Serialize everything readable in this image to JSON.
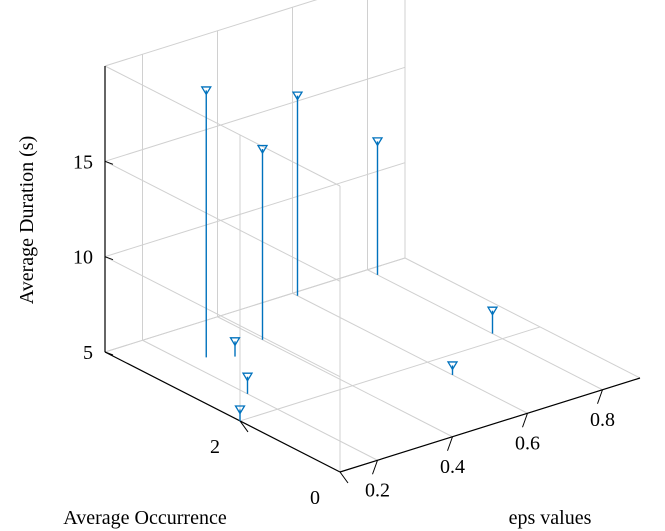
{
  "chart_data": {
    "type": "stem3d",
    "xlabel": "eps values",
    "ylabel": "Average Occurrence",
    "zlabel": "Average Duration (s)",
    "xticks": [
      0.2,
      0.4,
      0.6,
      0.8
    ],
    "yticks": [
      0,
      2
    ],
    "zticks": [
      5,
      10,
      15
    ],
    "xlim": [
      0.1,
      0.9
    ],
    "ylim": [
      0,
      4.7
    ],
    "zlim": [
      5,
      20
    ],
    "grid": true,
    "colors": {
      "stem": "#0072BD",
      "grid": "#d0d0d0",
      "axis": "#000000"
    },
    "points": [
      {
        "x": 0.1,
        "y": 2.0,
        "z": 5.6
      },
      {
        "x": 0.2,
        "y": 2.6,
        "z": 5.9
      },
      {
        "x": 0.3,
        "y": 3.6,
        "z": 5.8
      },
      {
        "x": 0.6,
        "y": 1.5,
        "z": 5.5
      },
      {
        "x": 0.8,
        "y": 2.2,
        "z": 6.2
      },
      {
        "x": 0.25,
        "y": 3.8,
        "z": 19.0
      },
      {
        "x": 0.4,
        "y": 3.8,
        "z": 15.0
      },
      {
        "x": 0.6,
        "y": 4.6,
        "z": 15.5
      },
      {
        "x": 0.8,
        "y": 4.5,
        "z": 12.0
      }
    ]
  }
}
